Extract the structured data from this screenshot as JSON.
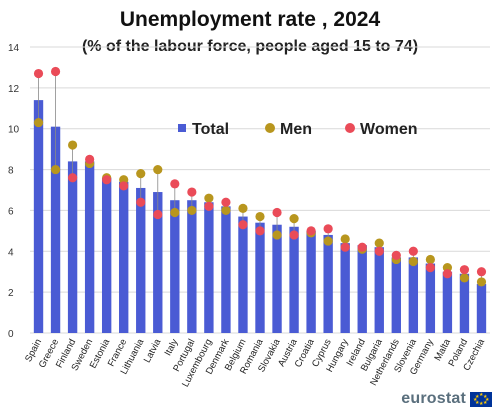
{
  "chart_data": {
    "type": "bar",
    "title": "Unemployment rate , 2024",
    "subtitle": "(% of the labour force, people aged 15 to 74)",
    "ylim": [
      0,
      14
    ],
    "yticks": [
      0,
      2,
      4,
      6,
      8,
      10,
      12,
      14
    ],
    "grid": true,
    "legend_position": "top-center",
    "categories": [
      "Spain",
      "Greece",
      "Finland",
      "Sweden",
      "Estonia",
      "France",
      "Lithuania",
      "Latvia",
      "Italy",
      "Portugal",
      "Luxembourg",
      "Denmark",
      "Belgium",
      "Romania",
      "Slovakia",
      "Austria",
      "Croatia",
      "Cyprus",
      "Hungary",
      "Ireland",
      "Bulgaria",
      "Netherlands",
      "Slovenia",
      "Germany",
      "Malta",
      "Poland",
      "Czechia"
    ],
    "series": [
      {
        "name": "Total",
        "kind": "bar",
        "color": "#4a5bd4",
        "values": [
          11.4,
          10.1,
          8.4,
          8.4,
          7.6,
          7.4,
          7.1,
          6.9,
          6.5,
          6.5,
          6.4,
          6.2,
          5.7,
          5.4,
          5.3,
          5.2,
          5.0,
          4.8,
          4.4,
          4.3,
          4.2,
          3.7,
          3.7,
          3.4,
          3.0,
          2.9,
          2.4
        ]
      },
      {
        "name": "Men",
        "kind": "point",
        "color": "#b8961e",
        "values": [
          10.3,
          8.0,
          9.2,
          8.3,
          7.6,
          7.5,
          7.8,
          8.0,
          5.9,
          6.0,
          6.6,
          6.0,
          6.1,
          5.7,
          4.8,
          5.6,
          4.9,
          4.5,
          4.6,
          4.1,
          4.4,
          3.6,
          3.5,
          3.6,
          3.2,
          2.7,
          2.5
        ]
      },
      {
        "name": "Women",
        "kind": "point",
        "color": "#ea4b58",
        "values": [
          12.7,
          12.8,
          7.6,
          8.5,
          7.5,
          7.2,
          6.4,
          5.8,
          7.3,
          6.9,
          6.2,
          6.4,
          5.3,
          5.0,
          5.9,
          4.8,
          5.0,
          5.1,
          4.2,
          4.2,
          4.0,
          3.8,
          4.0,
          3.2,
          2.9,
          3.1,
          3.0
        ]
      }
    ]
  },
  "branding": {
    "logo_text": "eurostat"
  }
}
